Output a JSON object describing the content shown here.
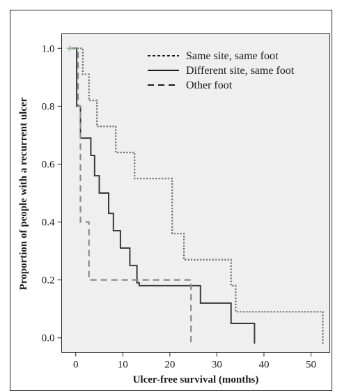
{
  "chart_data": {
    "type": "line",
    "step": true,
    "xlabel": "Ulcer-free survival (months)",
    "ylabel": "Proportion of people with a recurrent ulcer",
    "xlim": [
      -3,
      54
    ],
    "ylim": [
      -0.05,
      1.05
    ],
    "x_ticks": [
      0,
      10,
      20,
      30,
      40,
      50
    ],
    "y_ticks": [
      0.0,
      0.2,
      0.4,
      0.6,
      0.8,
      1.0
    ],
    "x_tick_labels": [
      "0",
      "10",
      "20",
      "30",
      "40",
      "50"
    ],
    "y_tick_labels": [
      "0.0",
      "0.2",
      "0.4",
      "0.6",
      "0.8",
      "1.0"
    ],
    "legend_position": "top-right",
    "grid": false,
    "background_color": "#efefef",
    "censor_mark": {
      "x": -1.3,
      "y": 1.0,
      "color": "#7fbf7f"
    },
    "series": [
      {
        "name": "Same site, same foot",
        "style": "dotted",
        "color": "#6e6e6e",
        "x": [
          -1,
          1.5,
          2.8,
          4.5,
          8.5,
          12.5,
          20.5,
          23,
          24.5,
          33,
          34,
          52.5
        ],
        "y": [
          1.0,
          0.91,
          0.82,
          0.73,
          0.64,
          0.55,
          0.36,
          0.27,
          0.27,
          0.18,
          0.09,
          0.09
        ],
        "end": {
          "x": 52.5,
          "y": -0.02
        }
      },
      {
        "name": "Different site, same foot",
        "style": "solid",
        "color": "#3a3a3a",
        "x": [
          -1,
          0.2,
          1,
          3.2,
          4,
          5,
          7,
          8,
          9.5,
          11.5,
          13,
          13.5,
          26.5,
          33,
          38
        ],
        "y": [
          1.0,
          0.8,
          0.69,
          0.63,
          0.56,
          0.5,
          0.43,
          0.37,
          0.31,
          0.25,
          0.19,
          0.18,
          0.12,
          0.05,
          0.05
        ],
        "end": {
          "x": 38,
          "y": -0.02
        }
      },
      {
        "name": "Other foot",
        "style": "dashed",
        "color": "#8a8a8a",
        "x": [
          -1,
          0.5,
          1,
          2.8,
          24.5
        ],
        "y": [
          1.0,
          0.8,
          0.4,
          0.2,
          0.2
        ],
        "end": {
          "x": 24.5,
          "y": -0.02
        }
      }
    ]
  }
}
